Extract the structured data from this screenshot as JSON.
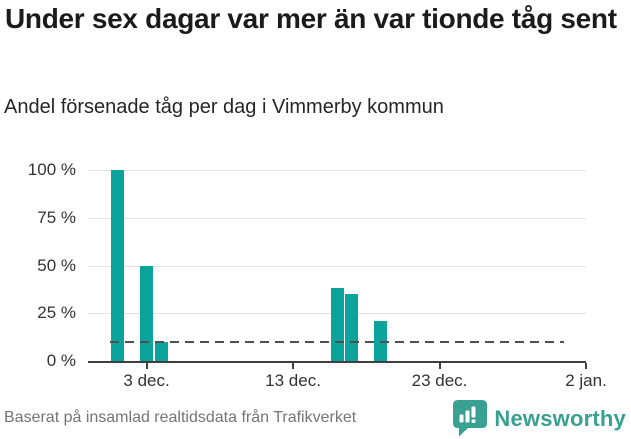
{
  "header": {
    "title": "Under sex dagar var mer än var tionde tåg sent",
    "subtitle": "Andel försenade tåg per dag i Vimmerby kommun"
  },
  "chart_data": {
    "type": "bar",
    "title": "Under sex dagar var mer än var tionde tåg sent",
    "subtitle": "Andel försenade tåg per dag i Vimmerby kommun",
    "unit": "%",
    "grid": true,
    "x_axis": {
      "domain_days": 34,
      "ticks": [
        {
          "day": 4,
          "label": "3 dec."
        },
        {
          "day": 14,
          "label": "13 dec."
        },
        {
          "day": 24,
          "label": "23 dec."
        },
        {
          "day": 34,
          "label": "2 jan."
        }
      ]
    },
    "y_axis": {
      "max": 100,
      "ticks": [
        0,
        25,
        50,
        75,
        100
      ],
      "suffix": " %"
    },
    "bars": [
      {
        "date": "1 dec",
        "day": 2,
        "value": 100
      },
      {
        "date": "3 dec",
        "day": 4,
        "value": 50
      },
      {
        "date": "4 dec",
        "day": 5,
        "value": 10
      },
      {
        "date": "16 dec",
        "day": 17,
        "value": 38
      },
      {
        "date": "17 dec",
        "day": 18,
        "value": 35
      },
      {
        "date": "19 dec",
        "day": 20,
        "value": 21
      }
    ],
    "reference_line": {
      "value": 10,
      "style": "dashed",
      "start_day": 1.5,
      "end_day": 32.5
    }
  },
  "footer": {
    "source": "Baserat på insamlad realtidsdata från Trafikverket",
    "logo_text": "Newsworthy"
  },
  "colors": {
    "bar": "#0aa49c",
    "grid": "#e2e2e2",
    "axis": "#3f3f3f",
    "reference": "#4f4f4f",
    "axis_text": "#333333",
    "muted_text": "#757575",
    "logo": "#38a191",
    "title_text": "#1b1b1b"
  }
}
